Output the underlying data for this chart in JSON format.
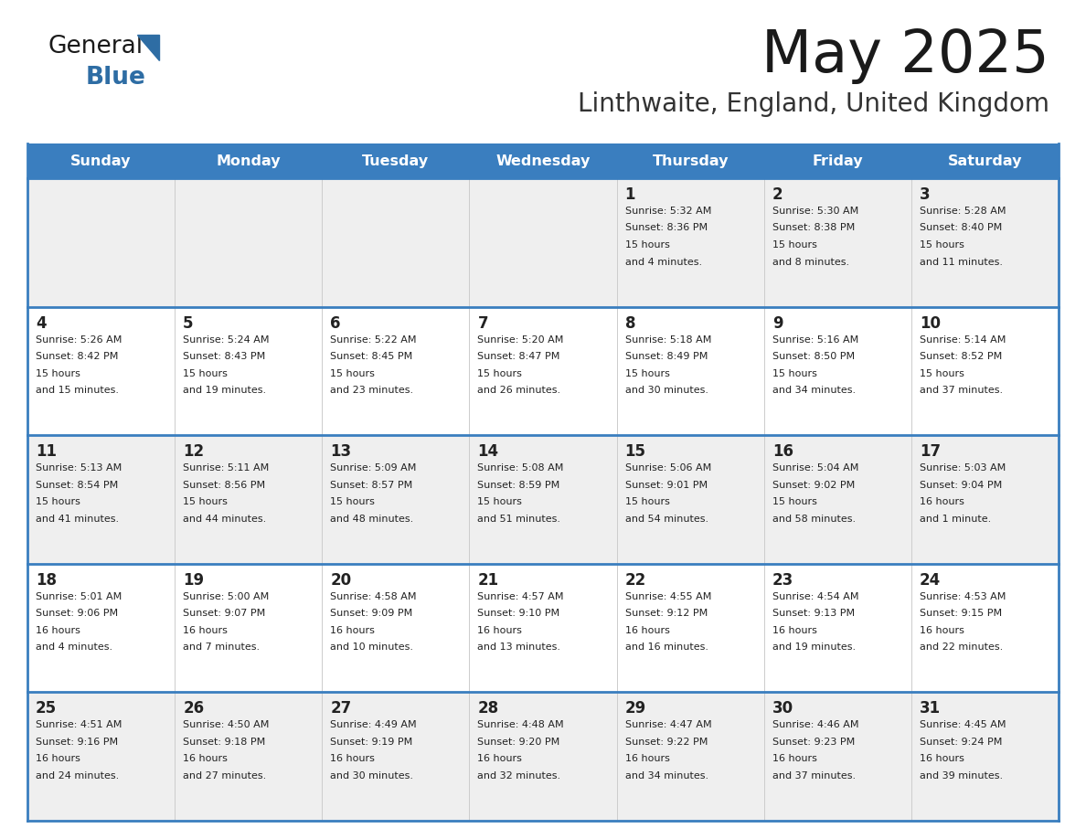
{
  "title": "May 2025",
  "subtitle": "Linthwaite, England, United Kingdom",
  "days_of_week": [
    "Sunday",
    "Monday",
    "Tuesday",
    "Wednesday",
    "Thursday",
    "Friday",
    "Saturday"
  ],
  "header_bg": "#3a7ebf",
  "header_text": "#ffffff",
  "row_bg_odd": "#efefef",
  "row_bg_even": "#ffffff",
  "border_color": "#3a7ebf",
  "text_color": "#222222",
  "calendar_data": [
    [
      null,
      null,
      null,
      null,
      {
        "day": 1,
        "sunrise": "5:32 AM",
        "sunset": "8:36 PM",
        "daylight": "15 hours and 4 minutes"
      },
      {
        "day": 2,
        "sunrise": "5:30 AM",
        "sunset": "8:38 PM",
        "daylight": "15 hours and 8 minutes"
      },
      {
        "day": 3,
        "sunrise": "5:28 AM",
        "sunset": "8:40 PM",
        "daylight": "15 hours and 11 minutes"
      }
    ],
    [
      {
        "day": 4,
        "sunrise": "5:26 AM",
        "sunset": "8:42 PM",
        "daylight": "15 hours and 15 minutes"
      },
      {
        "day": 5,
        "sunrise": "5:24 AM",
        "sunset": "8:43 PM",
        "daylight": "15 hours and 19 minutes"
      },
      {
        "day": 6,
        "sunrise": "5:22 AM",
        "sunset": "8:45 PM",
        "daylight": "15 hours and 23 minutes"
      },
      {
        "day": 7,
        "sunrise": "5:20 AM",
        "sunset": "8:47 PM",
        "daylight": "15 hours and 26 minutes"
      },
      {
        "day": 8,
        "sunrise": "5:18 AM",
        "sunset": "8:49 PM",
        "daylight": "15 hours and 30 minutes"
      },
      {
        "day": 9,
        "sunrise": "5:16 AM",
        "sunset": "8:50 PM",
        "daylight": "15 hours and 34 minutes"
      },
      {
        "day": 10,
        "sunrise": "5:14 AM",
        "sunset": "8:52 PM",
        "daylight": "15 hours and 37 minutes"
      }
    ],
    [
      {
        "day": 11,
        "sunrise": "5:13 AM",
        "sunset": "8:54 PM",
        "daylight": "15 hours and 41 minutes"
      },
      {
        "day": 12,
        "sunrise": "5:11 AM",
        "sunset": "8:56 PM",
        "daylight": "15 hours and 44 minutes"
      },
      {
        "day": 13,
        "sunrise": "5:09 AM",
        "sunset": "8:57 PM",
        "daylight": "15 hours and 48 minutes"
      },
      {
        "day": 14,
        "sunrise": "5:08 AM",
        "sunset": "8:59 PM",
        "daylight": "15 hours and 51 minutes"
      },
      {
        "day": 15,
        "sunrise": "5:06 AM",
        "sunset": "9:01 PM",
        "daylight": "15 hours and 54 minutes"
      },
      {
        "day": 16,
        "sunrise": "5:04 AM",
        "sunset": "9:02 PM",
        "daylight": "15 hours and 58 minutes"
      },
      {
        "day": 17,
        "sunrise": "5:03 AM",
        "sunset": "9:04 PM",
        "daylight": "16 hours and 1 minute"
      }
    ],
    [
      {
        "day": 18,
        "sunrise": "5:01 AM",
        "sunset": "9:06 PM",
        "daylight": "16 hours and 4 minutes"
      },
      {
        "day": 19,
        "sunrise": "5:00 AM",
        "sunset": "9:07 PM",
        "daylight": "16 hours and 7 minutes"
      },
      {
        "day": 20,
        "sunrise": "4:58 AM",
        "sunset": "9:09 PM",
        "daylight": "16 hours and 10 minutes"
      },
      {
        "day": 21,
        "sunrise": "4:57 AM",
        "sunset": "9:10 PM",
        "daylight": "16 hours and 13 minutes"
      },
      {
        "day": 22,
        "sunrise": "4:55 AM",
        "sunset": "9:12 PM",
        "daylight": "16 hours and 16 minutes"
      },
      {
        "day": 23,
        "sunrise": "4:54 AM",
        "sunset": "9:13 PM",
        "daylight": "16 hours and 19 minutes"
      },
      {
        "day": 24,
        "sunrise": "4:53 AM",
        "sunset": "9:15 PM",
        "daylight": "16 hours and 22 minutes"
      }
    ],
    [
      {
        "day": 25,
        "sunrise": "4:51 AM",
        "sunset": "9:16 PM",
        "daylight": "16 hours and 24 minutes"
      },
      {
        "day": 26,
        "sunrise": "4:50 AM",
        "sunset": "9:18 PM",
        "daylight": "16 hours and 27 minutes"
      },
      {
        "day": 27,
        "sunrise": "4:49 AM",
        "sunset": "9:19 PM",
        "daylight": "16 hours and 30 minutes"
      },
      {
        "day": 28,
        "sunrise": "4:48 AM",
        "sunset": "9:20 PM",
        "daylight": "16 hours and 32 minutes"
      },
      {
        "day": 29,
        "sunrise": "4:47 AM",
        "sunset": "9:22 PM",
        "daylight": "16 hours and 34 minutes"
      },
      {
        "day": 30,
        "sunrise": "4:46 AM",
        "sunset": "9:23 PM",
        "daylight": "16 hours and 37 minutes"
      },
      {
        "day": 31,
        "sunrise": "4:45 AM",
        "sunset": "9:24 PM",
        "daylight": "16 hours and 39 minutes"
      }
    ]
  ]
}
